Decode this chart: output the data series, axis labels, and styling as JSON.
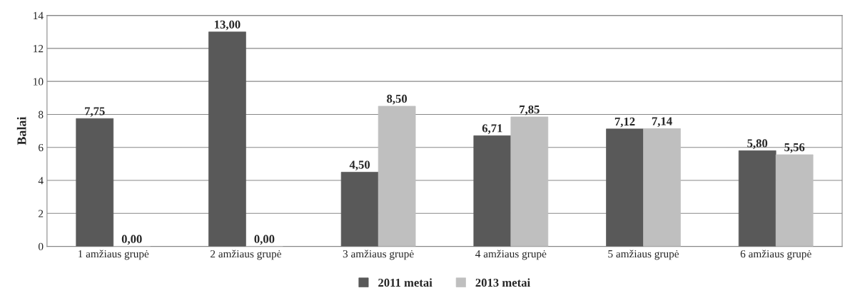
{
  "chart_data": {
    "type": "bar",
    "ylabel": "Balai",
    "categories": [
      "1 amžiaus grupė",
      "2 amžiaus grupė",
      "3 amžiaus grupė",
      "4 amžiaus grupė",
      "5 amžiaus grupė",
      "6 amžiaus grupė"
    ],
    "series": [
      {
        "name": "2011 metai",
        "color": "#595959",
        "values": [
          7.75,
          13.0,
          4.5,
          6.71,
          7.12,
          5.8
        ],
        "value_labels": [
          "7,75",
          "13,00",
          "4,50",
          "6,71",
          "7,12",
          "5,80"
        ]
      },
      {
        "name": "2013 metai",
        "color": "#bfbfbf",
        "values": [
          0.0,
          0.0,
          8.5,
          7.85,
          7.14,
          5.56
        ],
        "value_labels": [
          "0,00",
          "0,00",
          "8,50",
          "7,85",
          "7,14",
          "5,56"
        ]
      }
    ],
    "ylim": [
      0,
      14
    ],
    "yticks": [
      0,
      2,
      4,
      6,
      8,
      10,
      12,
      14
    ],
    "grid": "y",
    "legend": "bottom"
  }
}
